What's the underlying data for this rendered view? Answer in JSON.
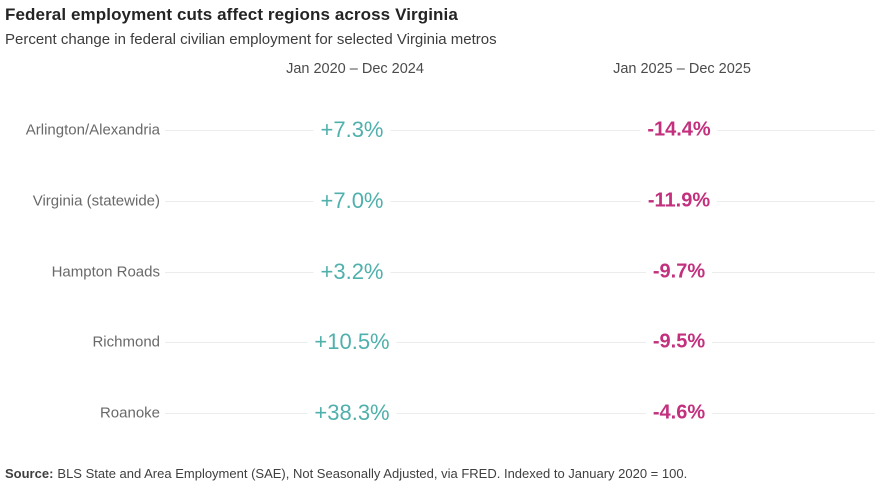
{
  "header": {
    "title": "Federal employment cuts affect regions across Virginia",
    "subtitle": "Percent change in federal civilian employment for selected Virginia metros"
  },
  "chart_data": {
    "type": "table",
    "title": "Federal employment cuts affect regions across Virginia",
    "subtitle": "Percent change in federal civilian employment for selected Virginia metros",
    "categories": [
      "Arlington/Alexandria",
      "Virginia (statewide)",
      "Hampton Roads",
      "Richmond",
      "Roanoke"
    ],
    "series": [
      {
        "name": "Jan 2020 – Dec 2024",
        "values": [
          7.3,
          7.0,
          3.2,
          10.5,
          38.3
        ],
        "labels": [
          "+7.3%",
          "+7.0%",
          "+3.2%",
          "+10.5%",
          "+38.3%"
        ],
        "color": "#4fb0ac"
      },
      {
        "name": "Jan 2025 – Dec 2025",
        "values": [
          -14.4,
          -11.9,
          -9.7,
          -9.5,
          -4.6
        ],
        "labels": [
          "-14.4%",
          "-11.9%",
          "-9.7%",
          "-9.5%",
          "-4.6%"
        ],
        "color": "#c3307e"
      }
    ],
    "layout": {
      "grid": "faint horizontal leader line per row",
      "row_line_color": "#ececec",
      "value_halo": "#ffffff"
    }
  },
  "footer": {
    "source_label": "Source:",
    "source_text": "BLS State and Area Employment (SAE), Not Seasonally Adjusted, via FRED. Indexed to January 2020 = 100."
  }
}
